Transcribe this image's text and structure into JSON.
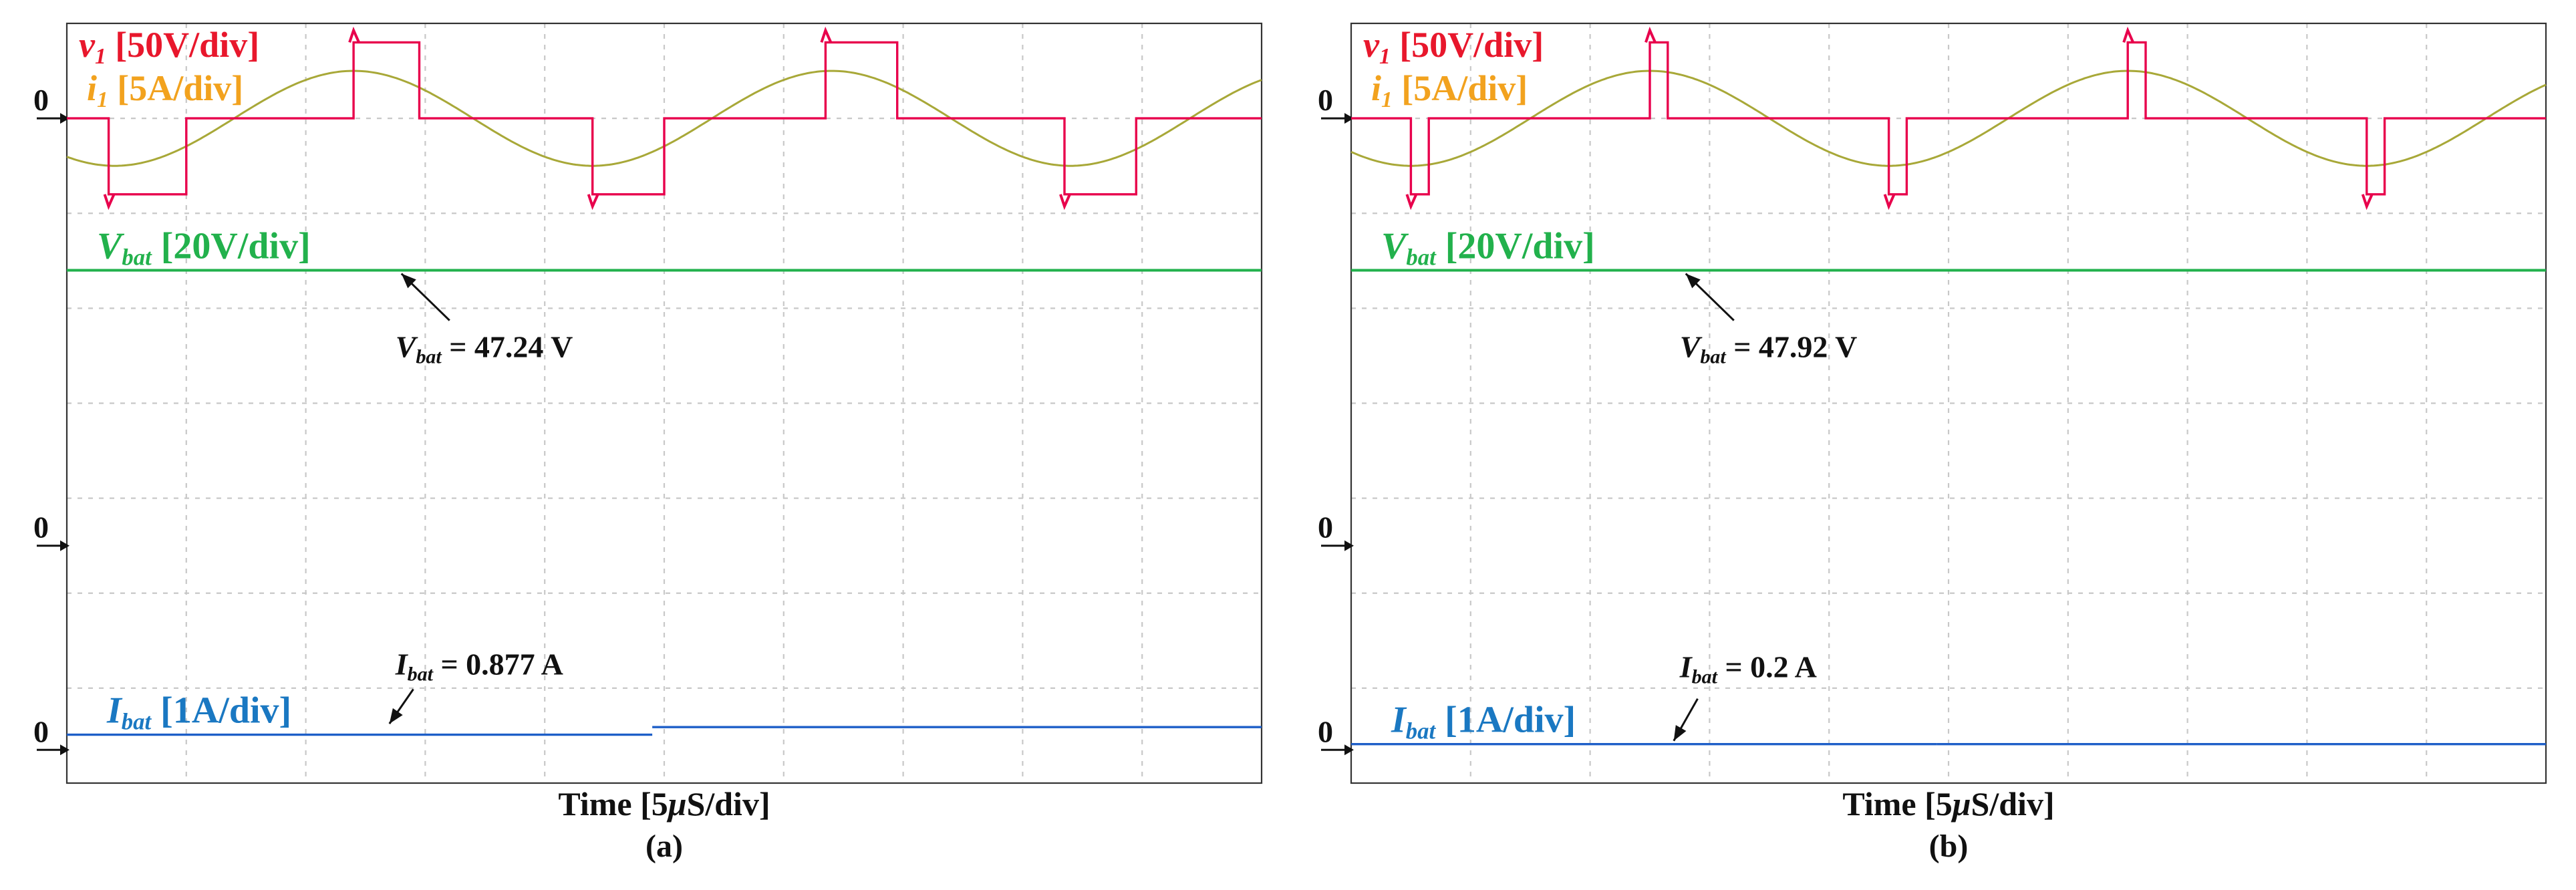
{
  "colors": {
    "v1": "#e8004c",
    "i1": "#a8a838",
    "v1_label": "#e8172c",
    "i1_label": "#f2a21e",
    "vbat": "#22b14c",
    "ibat": "#1e5fc8",
    "ibat_label": "#1a78c2",
    "text": "#111111",
    "grid": "#c8c8c8",
    "frame": "#333333"
  },
  "chart_data": [
    {
      "type": "line",
      "panel": "a",
      "caption": "(a)",
      "xlabel": {
        "prefix": "Time [5",
        "mu": "μ",
        "suffix": "S/div]"
      },
      "x_divisions": 10,
      "y_divisions": 8,
      "labels": {
        "v1": {
          "main": "v",
          "sub": "1",
          "rest": "[50V/div]"
        },
        "i1": {
          "main": "i",
          "sub": "1",
          "rest": "[5A/div]"
        },
        "vbat": {
          "main": "V",
          "sub": "bat",
          "rest": "[20V/div]"
        },
        "ibat": {
          "main": "I",
          "sub": "bat",
          "rest": "[1A/div]"
        }
      },
      "zero_markers": [
        "0",
        "0",
        "0"
      ],
      "annotations": {
        "vbat": {
          "main": "V",
          "sub": "bat",
          "text": "= 47.24 V"
        },
        "ibat": {
          "main": "I",
          "sub": "bat",
          "text": "= 0.877 A"
        }
      },
      "series": [
        {
          "name": "v1",
          "channel_scale": "50V/div",
          "x": [
            0,
            0.35,
            0.35,
            1.0,
            1.0,
            2.4,
            2.4,
            2.95,
            2.95,
            4.4,
            4.4,
            5.0,
            5.0,
            6.35,
            6.35,
            6.95,
            6.95,
            8.35,
            8.35,
            8.95,
            8.95,
            10
          ],
          "y_div": [
            0,
            0,
            -0.8,
            -0.8,
            0,
            0,
            0.8,
            0.8,
            0,
            0,
            -0.8,
            -0.8,
            0,
            0,
            0.8,
            0.8,
            0,
            0,
            -0.8,
            -0.8,
            0,
            0
          ]
        },
        {
          "name": "i1",
          "channel_scale": "5A/div",
          "shape": "sine",
          "period_div": 4,
          "peak_div": 0.5,
          "x_start": 0,
          "x_end": 10,
          "phase_div": -1.4
        },
        {
          "name": "vbat",
          "value": "47.24 V",
          "trace_level_div": -1.3
        },
        {
          "name": "ibat",
          "value": "0.877 A",
          "trace_level_div_left": 0.08,
          "trace_level_div_right": 0.12
        }
      ]
    },
    {
      "type": "line",
      "panel": "b",
      "caption": "(b)",
      "xlabel": {
        "prefix": "Time [5",
        "mu": "μ",
        "suffix": "S/div]"
      },
      "x_divisions": 10,
      "y_divisions": 8,
      "labels": {
        "v1": {
          "main": "v",
          "sub": "1",
          "rest": "[50V/div]"
        },
        "i1": {
          "main": "i",
          "sub": "1",
          "rest": "[5A/div]"
        },
        "vbat": {
          "main": "V",
          "sub": "bat",
          "rest": "[20V/div]"
        },
        "ibat": {
          "main": "I",
          "sub": "bat",
          "rest": "[1A/div]"
        }
      },
      "zero_markers": [
        "0",
        "0",
        "0"
      ],
      "annotations": {
        "vbat": {
          "main": "V",
          "sub": "bat",
          "text": "= 47.92 V"
        },
        "ibat": {
          "main": "I",
          "sub": "bat",
          "text": "= 0.2 A"
        }
      },
      "series": [
        {
          "name": "v1",
          "channel_scale": "50V/div",
          "x": [
            0,
            0.5,
            0.5,
            0.65,
            0.65,
            2.5,
            2.5,
            2.65,
            2.65,
            4.5,
            4.5,
            4.65,
            4.65,
            6.5,
            6.5,
            6.65,
            6.65,
            8.5,
            8.5,
            8.65,
            8.65,
            10
          ],
          "y_div": [
            0,
            0,
            -0.8,
            -0.8,
            0,
            0,
            0.8,
            0.8,
            0,
            0,
            -0.8,
            -0.8,
            0,
            0,
            0.8,
            0.8,
            0,
            0,
            -0.8,
            -0.8,
            0,
            0
          ]
        },
        {
          "name": "i1",
          "channel_scale": "5A/div",
          "shape": "sine",
          "period_div": 4,
          "peak_div": 0.5,
          "x_start": 0,
          "x_end": 10,
          "phase_div": -1.5
        },
        {
          "name": "vbat",
          "value": "47.92 V",
          "trace_level_div": -1.25
        },
        {
          "name": "ibat",
          "value": "0.2 A",
          "trace_level_div_left": 0.03,
          "trace_level_div_right": 0.03
        }
      ]
    }
  ]
}
